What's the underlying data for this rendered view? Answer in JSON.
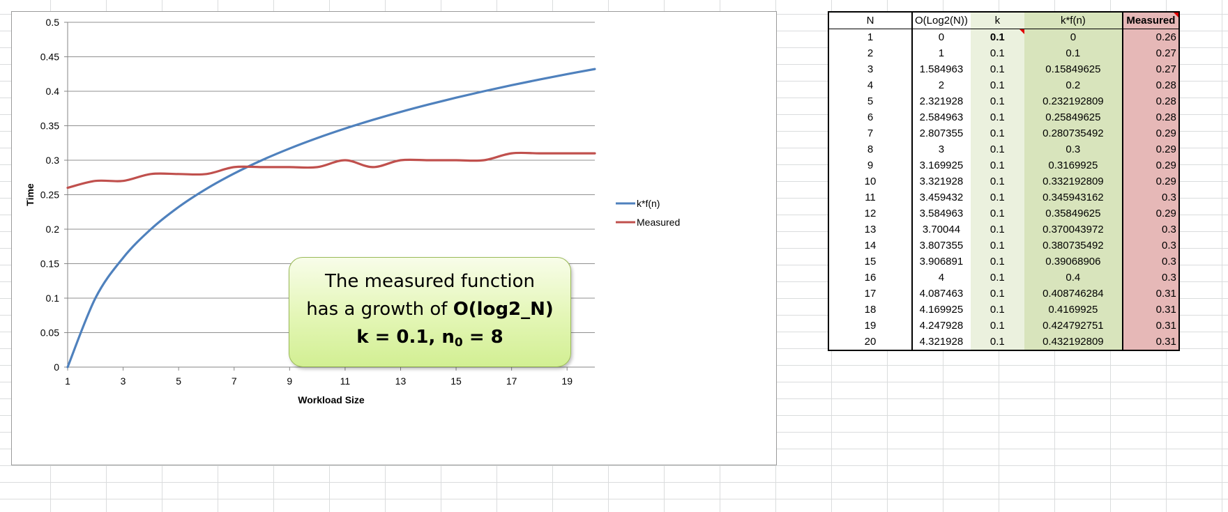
{
  "chart_data": {
    "type": "line",
    "xlabel": "Workload Size",
    "ylabel": "Time",
    "xlim": [
      1,
      20
    ],
    "ylim": [
      0,
      0.5
    ],
    "x_ticks": [
      "1",
      "3",
      "5",
      "7",
      "9",
      "11",
      "13",
      "15",
      "17",
      "19"
    ],
    "y_ticks": [
      "0",
      "0.05",
      "0.1",
      "0.15",
      "0.2",
      "0.25",
      "0.3",
      "0.35",
      "0.4",
      "0.45",
      "0.5"
    ],
    "grid": "horizontal",
    "legend_position": "right",
    "x": [
      1,
      2,
      3,
      4,
      5,
      6,
      7,
      8,
      9,
      10,
      11,
      12,
      13,
      14,
      15,
      16,
      17,
      18,
      19,
      20
    ],
    "series": [
      {
        "name": "k*f(n)",
        "color": "#4f81bd",
        "values": [
          0,
          0.1,
          0.15849625,
          0.2,
          0.232192809,
          0.25849625,
          0.280735492,
          0.3,
          0.3169925,
          0.332192809,
          0.345943162,
          0.35849625,
          0.370043972,
          0.380735492,
          0.39068906,
          0.4,
          0.408746284,
          0.4169925,
          0.424792751,
          0.432192809
        ]
      },
      {
        "name": "Measured",
        "color": "#c0504d",
        "values": [
          0.26,
          0.27,
          0.27,
          0.28,
          0.28,
          0.28,
          0.29,
          0.29,
          0.29,
          0.29,
          0.3,
          0.29,
          0.3,
          0.3,
          0.3,
          0.3,
          0.31,
          0.31,
          0.31,
          0.31
        ]
      }
    ]
  },
  "callout": {
    "line1": "The measured function",
    "line2_prefix": "has a growth of ",
    "line2_bold": "O(log2_N)",
    "line3_prefix": "k = 0.1, n",
    "line3_sub": "0",
    "line3_suffix": " = 8"
  },
  "table": {
    "headers": [
      "N",
      "O(Log2(N))",
      "k",
      "k*f(n)",
      "Measured"
    ],
    "rows": [
      [
        "1",
        "0",
        "0.1",
        "0",
        "0.26"
      ],
      [
        "2",
        "1",
        "0.1",
        "0.1",
        "0.27"
      ],
      [
        "3",
        "1.584963",
        "0.1",
        "0.15849625",
        "0.27"
      ],
      [
        "4",
        "2",
        "0.1",
        "0.2",
        "0.28"
      ],
      [
        "5",
        "2.321928",
        "0.1",
        "0.232192809",
        "0.28"
      ],
      [
        "6",
        "2.584963",
        "0.1",
        "0.25849625",
        "0.28"
      ],
      [
        "7",
        "2.807355",
        "0.1",
        "0.280735492",
        "0.29"
      ],
      [
        "8",
        "3",
        "0.1",
        "0.3",
        "0.29"
      ],
      [
        "9",
        "3.169925",
        "0.1",
        "0.3169925",
        "0.29"
      ],
      [
        "10",
        "3.321928",
        "0.1",
        "0.332192809",
        "0.29"
      ],
      [
        "11",
        "3.459432",
        "0.1",
        "0.345943162",
        "0.3"
      ],
      [
        "12",
        "3.584963",
        "0.1",
        "0.35849625",
        "0.29"
      ],
      [
        "13",
        "3.70044",
        "0.1",
        "0.370043972",
        "0.3"
      ],
      [
        "14",
        "3.807355",
        "0.1",
        "0.380735492",
        "0.3"
      ],
      [
        "15",
        "3.906891",
        "0.1",
        "0.39068906",
        "0.3"
      ],
      [
        "16",
        "4",
        "0.1",
        "0.4",
        "0.3"
      ],
      [
        "17",
        "4.087463",
        "0.1",
        "0.408746284",
        "0.31"
      ],
      [
        "18",
        "4.169925",
        "0.1",
        "0.4169925",
        "0.31"
      ],
      [
        "19",
        "4.247928",
        "0.1",
        "0.424792751",
        "0.31"
      ],
      [
        "20",
        "4.321928",
        "0.1",
        "0.432192809",
        "0.31"
      ]
    ]
  }
}
